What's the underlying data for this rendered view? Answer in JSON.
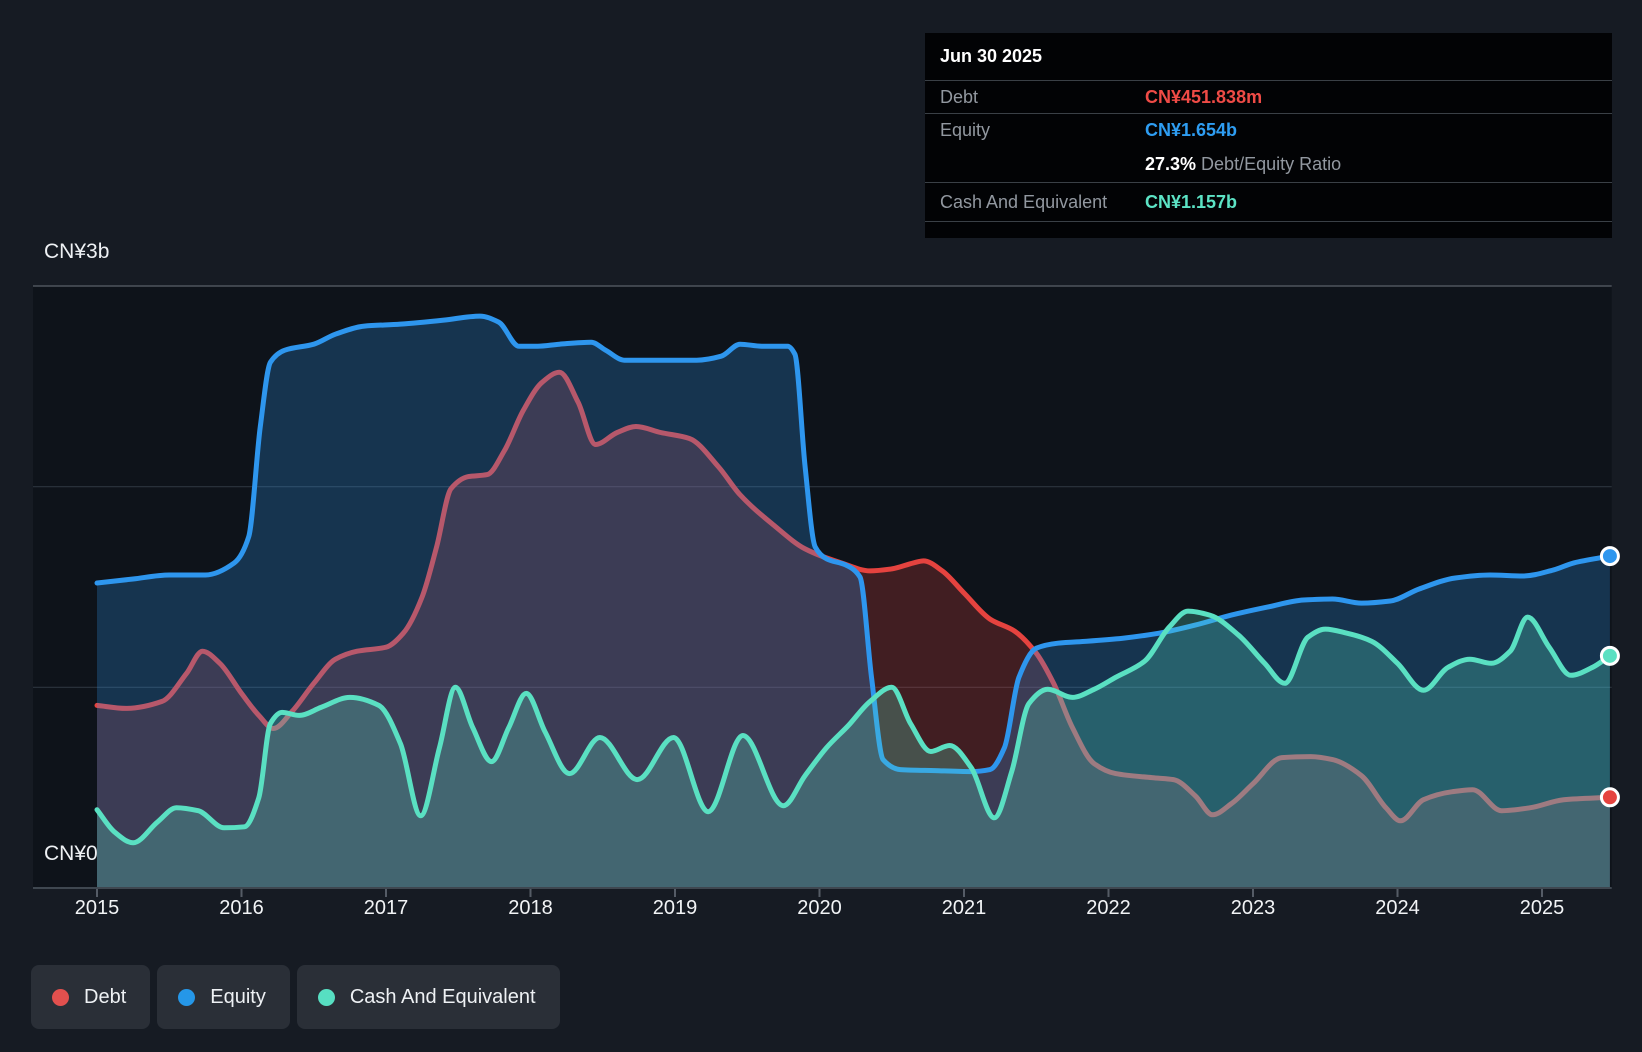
{
  "tooltip": {
    "date": "Jun 30 2025",
    "rows": [
      {
        "label": "Debt",
        "value": "CN¥451.838m",
        "color": "#ef4b46"
      },
      {
        "label": "Equity",
        "value": "CN¥1.654b",
        "color": "#2e9df2"
      },
      {
        "label": "Cash And Equivalent",
        "value": "CN¥1.157b",
        "color": "#5ce3c5"
      }
    ],
    "ratio": {
      "value": "27.3%",
      "label": " Debt/Equity Ratio"
    }
  },
  "legend": {
    "items": [
      {
        "label": "Debt",
        "color": "#e2504e"
      },
      {
        "label": "Equity",
        "color": "#2597e8"
      },
      {
        "label": "Cash And Equivalent",
        "color": "#57dfc2"
      }
    ]
  },
  "chart_data": {
    "type": "area",
    "unit": "CN¥ billions",
    "xlim": [
      2015.0,
      2025.47
    ],
    "ylim": [
      0,
      3
    ],
    "x_ticks": [
      2015,
      2016,
      2017,
      2018,
      2019,
      2020,
      2021,
      2022,
      2023,
      2024,
      2025
    ],
    "y_ticks": [
      {
        "value": 3,
        "label": "CN¥3b"
      },
      {
        "value": 0,
        "label": "CN¥0"
      }
    ],
    "y_gridlines": [
      3,
      2,
      1
    ],
    "series": [
      {
        "name": "Debt",
        "color": "#e5433f",
        "fill_opacity": 0.24,
        "points": [
          [
            2015.0,
            0.91
          ],
          [
            2015.2,
            0.895
          ],
          [
            2015.45,
            0.93
          ],
          [
            2015.62,
            1.07
          ],
          [
            2015.73,
            1.18
          ],
          [
            2015.85,
            1.12
          ],
          [
            2016.0,
            0.97
          ],
          [
            2016.12,
            0.86
          ],
          [
            2016.22,
            0.795
          ],
          [
            2016.35,
            0.88
          ],
          [
            2016.5,
            1.02
          ],
          [
            2016.65,
            1.14
          ],
          [
            2016.8,
            1.18
          ],
          [
            2017.0,
            1.2
          ],
          [
            2017.12,
            1.27
          ],
          [
            2017.25,
            1.45
          ],
          [
            2017.35,
            1.7
          ],
          [
            2017.45,
            1.99
          ],
          [
            2017.57,
            2.05
          ],
          [
            2017.7,
            2.06
          ],
          [
            2017.82,
            2.18
          ],
          [
            2017.95,
            2.38
          ],
          [
            2018.08,
            2.52
          ],
          [
            2018.2,
            2.57
          ],
          [
            2018.33,
            2.42
          ],
          [
            2018.45,
            2.21
          ],
          [
            2018.6,
            2.27
          ],
          [
            2018.73,
            2.3
          ],
          [
            2018.9,
            2.27
          ],
          [
            2019.1,
            2.24
          ],
          [
            2019.3,
            2.1
          ],
          [
            2019.45,
            1.96
          ],
          [
            2019.68,
            1.81
          ],
          [
            2019.9,
            1.69
          ],
          [
            2020.15,
            1.62
          ],
          [
            2020.35,
            1.58
          ],
          [
            2020.5,
            1.59
          ],
          [
            2020.65,
            1.62
          ],
          [
            2020.72,
            1.63
          ],
          [
            2020.85,
            1.58
          ],
          [
            2021.0,
            1.47
          ],
          [
            2021.18,
            1.34
          ],
          [
            2021.35,
            1.28
          ],
          [
            2021.5,
            1.17
          ],
          [
            2021.62,
            1.02
          ],
          [
            2021.75,
            0.8
          ],
          [
            2021.9,
            0.62
          ],
          [
            2022.05,
            0.57
          ],
          [
            2022.3,
            0.55
          ],
          [
            2022.45,
            0.54
          ],
          [
            2022.6,
            0.46
          ],
          [
            2022.72,
            0.365
          ],
          [
            2022.85,
            0.42
          ],
          [
            2023.0,
            0.52
          ],
          [
            2023.2,
            0.65
          ],
          [
            2023.4,
            0.655
          ],
          [
            2023.55,
            0.64
          ],
          [
            2023.75,
            0.56
          ],
          [
            2023.92,
            0.4
          ],
          [
            2024.02,
            0.335
          ],
          [
            2024.18,
            0.44
          ],
          [
            2024.38,
            0.48
          ],
          [
            2024.52,
            0.49
          ],
          [
            2024.72,
            0.385
          ],
          [
            2024.92,
            0.4
          ],
          [
            2025.15,
            0.44
          ],
          [
            2025.47,
            0.452
          ]
        ]
      },
      {
        "name": "Equity",
        "color": "#2e96ee",
        "fill_opacity": 0.25,
        "points": [
          [
            2015.0,
            1.52
          ],
          [
            2015.25,
            1.54
          ],
          [
            2015.5,
            1.56
          ],
          [
            2015.75,
            1.56
          ],
          [
            2015.95,
            1.62
          ],
          [
            2016.05,
            1.75
          ],
          [
            2016.13,
            2.3
          ],
          [
            2016.2,
            2.62
          ],
          [
            2016.3,
            2.68
          ],
          [
            2016.5,
            2.71
          ],
          [
            2016.65,
            2.76
          ],
          [
            2016.85,
            2.8
          ],
          [
            2017.1,
            2.81
          ],
          [
            2017.4,
            2.83
          ],
          [
            2017.65,
            2.85
          ],
          [
            2017.78,
            2.82
          ],
          [
            2017.92,
            2.7
          ],
          [
            2018.05,
            2.7
          ],
          [
            2018.2,
            2.71
          ],
          [
            2018.42,
            2.72
          ],
          [
            2018.52,
            2.68
          ],
          [
            2018.65,
            2.63
          ],
          [
            2018.9,
            2.63
          ],
          [
            2019.15,
            2.63
          ],
          [
            2019.32,
            2.65
          ],
          [
            2019.45,
            2.71
          ],
          [
            2019.6,
            2.7
          ],
          [
            2019.78,
            2.7
          ],
          [
            2019.83,
            2.66
          ],
          [
            2019.9,
            2.1
          ],
          [
            2019.97,
            1.7
          ],
          [
            2020.05,
            1.64
          ],
          [
            2020.18,
            1.61
          ],
          [
            2020.28,
            1.55
          ],
          [
            2020.36,
            1.05
          ],
          [
            2020.44,
            0.64
          ],
          [
            2020.56,
            0.59
          ],
          [
            2020.8,
            0.585
          ],
          [
            2021.05,
            0.58
          ],
          [
            2021.18,
            0.59
          ],
          [
            2021.28,
            0.7
          ],
          [
            2021.38,
            1.05
          ],
          [
            2021.5,
            1.195
          ],
          [
            2021.65,
            1.22
          ],
          [
            2021.85,
            1.23
          ],
          [
            2022.1,
            1.245
          ],
          [
            2022.35,
            1.27
          ],
          [
            2022.6,
            1.31
          ],
          [
            2022.85,
            1.36
          ],
          [
            2023.1,
            1.4
          ],
          [
            2023.35,
            1.435
          ],
          [
            2023.55,
            1.44
          ],
          [
            2023.75,
            1.42
          ],
          [
            2023.95,
            1.43
          ],
          [
            2024.15,
            1.49
          ],
          [
            2024.4,
            1.545
          ],
          [
            2024.64,
            1.56
          ],
          [
            2024.87,
            1.555
          ],
          [
            2025.08,
            1.585
          ],
          [
            2025.22,
            1.62
          ],
          [
            2025.47,
            1.654
          ]
        ]
      },
      {
        "name": "Cash And Equivalent",
        "color": "#5ae0c2",
        "fill_opacity": 0.26,
        "points": [
          [
            2015.0,
            0.39
          ],
          [
            2015.12,
            0.28
          ],
          [
            2015.25,
            0.225
          ],
          [
            2015.42,
            0.33
          ],
          [
            2015.55,
            0.4
          ],
          [
            2015.7,
            0.385
          ],
          [
            2015.88,
            0.3
          ],
          [
            2016.02,
            0.305
          ],
          [
            2016.12,
            0.45
          ],
          [
            2016.2,
            0.82
          ],
          [
            2016.28,
            0.875
          ],
          [
            2016.4,
            0.86
          ],
          [
            2016.55,
            0.9
          ],
          [
            2016.75,
            0.95
          ],
          [
            2016.95,
            0.91
          ],
          [
            2017.1,
            0.72
          ],
          [
            2017.24,
            0.36
          ],
          [
            2017.37,
            0.7
          ],
          [
            2017.48,
            1.0
          ],
          [
            2017.6,
            0.8
          ],
          [
            2017.73,
            0.63
          ],
          [
            2017.85,
            0.8
          ],
          [
            2017.97,
            0.97
          ],
          [
            2018.1,
            0.78
          ],
          [
            2018.27,
            0.57
          ],
          [
            2018.48,
            0.75
          ],
          [
            2018.74,
            0.54
          ],
          [
            2018.99,
            0.75
          ],
          [
            2019.23,
            0.38
          ],
          [
            2019.47,
            0.76
          ],
          [
            2019.75,
            0.41
          ],
          [
            2019.9,
            0.56
          ],
          [
            2020.05,
            0.7
          ],
          [
            2020.2,
            0.81
          ],
          [
            2020.35,
            0.93
          ],
          [
            2020.5,
            1.0
          ],
          [
            2020.63,
            0.82
          ],
          [
            2020.77,
            0.68
          ],
          [
            2020.9,
            0.71
          ],
          [
            2021.05,
            0.6
          ],
          [
            2021.21,
            0.35
          ],
          [
            2021.33,
            0.58
          ],
          [
            2021.45,
            0.92
          ],
          [
            2021.58,
            0.99
          ],
          [
            2021.75,
            0.95
          ],
          [
            2021.9,
            0.99
          ],
          [
            2022.05,
            1.05
          ],
          [
            2022.25,
            1.13
          ],
          [
            2022.42,
            1.3
          ],
          [
            2022.55,
            1.38
          ],
          [
            2022.7,
            1.36
          ],
          [
            2022.9,
            1.26
          ],
          [
            2023.08,
            1.12
          ],
          [
            2023.22,
            1.02
          ],
          [
            2023.38,
            1.25
          ],
          [
            2023.5,
            1.29
          ],
          [
            2023.65,
            1.27
          ],
          [
            2023.82,
            1.23
          ],
          [
            2024.0,
            1.12
          ],
          [
            2024.18,
            0.985
          ],
          [
            2024.35,
            1.1
          ],
          [
            2024.5,
            1.14
          ],
          [
            2024.65,
            1.12
          ],
          [
            2024.78,
            1.18
          ],
          [
            2024.9,
            1.35
          ],
          [
            2025.05,
            1.2
          ],
          [
            2025.2,
            1.06
          ],
          [
            2025.35,
            1.1
          ],
          [
            2025.47,
            1.157
          ]
        ]
      }
    ],
    "legend_position": "bottom-left",
    "grid": true
  }
}
